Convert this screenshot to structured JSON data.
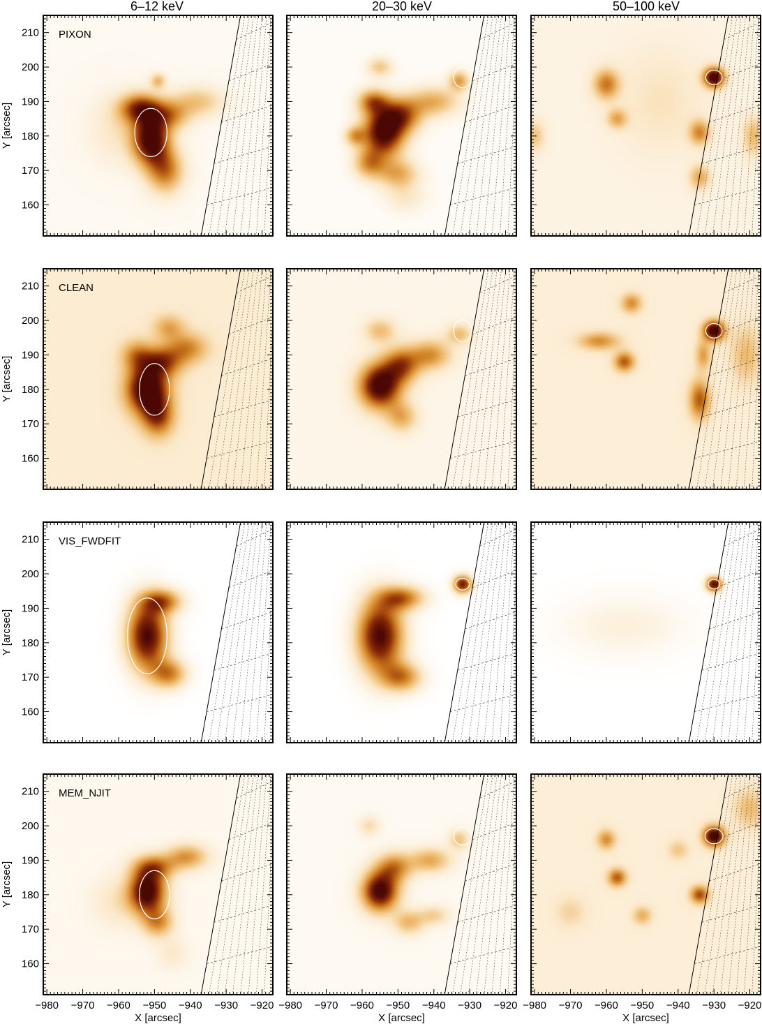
{
  "figure": {
    "column_titles": [
      "6–12 keV",
      "20–30 keV",
      "50–100 keV"
    ],
    "row_labels": [
      "PIXON",
      "CLEAN",
      "VIS_FWDFIT",
      "MEM_NJIT"
    ],
    "xlabel": "X [arcsec]",
    "ylabel": "Y [arcsec]"
  },
  "chart_data": {
    "type": "heatmap",
    "colormap": [
      "#ffffff",
      "#fbe7c6",
      "#eeb86a",
      "#cc7a1d",
      "#8a2a08",
      "#4a0703"
    ],
    "xlim": [
      -981,
      -917
    ],
    "ylim": [
      151,
      215
    ],
    "xticks": [
      -980,
      -970,
      -960,
      -950,
      -940,
      -930,
      -920
    ],
    "yticks": [
      160,
      170,
      180,
      190,
      200,
      210
    ],
    "grid": false,
    "limb_line": [
      [
        -937,
        151
      ],
      [
        -926,
        215
      ]
    ],
    "panels": [
      {
        "row": 0,
        "col": 0,
        "background": 0.05,
        "sources": [
          {
            "x": -951,
            "y": 179,
            "sx": 3.5,
            "sy": 5,
            "a": 1.0
          },
          {
            "x": -954,
            "y": 188,
            "sx": 4,
            "sy": 3,
            "a": 0.7
          },
          {
            "x": -946,
            "y": 186,
            "sx": 4,
            "sy": 3,
            "a": 0.45
          },
          {
            "x": -947,
            "y": 170,
            "sx": 3.5,
            "sy": 4.5,
            "a": 0.55
          },
          {
            "x": -938,
            "y": 190,
            "sx": 5,
            "sy": 3,
            "a": 0.3
          },
          {
            "x": -949,
            "y": 196,
            "sx": 1.5,
            "sy": 1.5,
            "a": 0.35
          },
          {
            "x": -960,
            "y": 182,
            "sx": 6,
            "sy": 7,
            "a": 0.15
          }
        ],
        "contours": [
          {
            "x": -951,
            "y": 181,
            "rx": 4.5,
            "ry": 7
          }
        ]
      },
      {
        "row": 0,
        "col": 1,
        "background": 0.03,
        "sources": [
          {
            "x": -954,
            "y": 181,
            "sx": 4,
            "sy": 5,
            "a": 1.0
          },
          {
            "x": -949,
            "y": 186,
            "sx": 4,
            "sy": 3.5,
            "a": 0.6
          },
          {
            "x": -957,
            "y": 190,
            "sx": 3,
            "sy": 2.5,
            "a": 0.55
          },
          {
            "x": -940,
            "y": 190,
            "sx": 5,
            "sy": 3,
            "a": 0.4
          },
          {
            "x": -933,
            "y": 196,
            "sx": 2,
            "sy": 2,
            "a": 0.45
          },
          {
            "x": -950,
            "y": 169,
            "sx": 4,
            "sy": 3,
            "a": 0.4
          },
          {
            "x": -958,
            "y": 172,
            "sx": 3,
            "sy": 3,
            "a": 0.45
          },
          {
            "x": -948,
            "y": 162,
            "sx": 4,
            "sy": 3,
            "a": 0.15
          },
          {
            "x": -962,
            "y": 180,
            "sx": 2,
            "sy": 2,
            "a": 0.4
          },
          {
            "x": -955,
            "y": 200,
            "sx": 2.5,
            "sy": 2,
            "a": 0.3
          }
        ],
        "contours": [
          {
            "x": -932,
            "y": 197,
            "rx": 2.5,
            "ry": 3
          }
        ]
      },
      {
        "row": 0,
        "col": 2,
        "background": 0.1,
        "sources": [
          {
            "x": -930,
            "y": 197,
            "sx": 2,
            "sy": 2,
            "a": 1.0
          },
          {
            "x": -960,
            "y": 195,
            "sx": 2.5,
            "sy": 3,
            "a": 0.5
          },
          {
            "x": -957,
            "y": 185,
            "sx": 2,
            "sy": 2,
            "a": 0.35
          },
          {
            "x": -934,
            "y": 181,
            "sx": 2,
            "sy": 2.5,
            "a": 0.45
          },
          {
            "x": -934,
            "y": 168,
            "sx": 2,
            "sy": 2.5,
            "a": 0.35
          },
          {
            "x": -919,
            "y": 180,
            "sx": 2,
            "sy": 4,
            "a": 0.3
          },
          {
            "x": -980,
            "y": 180,
            "sx": 2,
            "sy": 3,
            "a": 0.25
          },
          {
            "x": -945,
            "y": 190,
            "sx": 8,
            "sy": 10,
            "a": 0.12
          }
        ],
        "contours": [
          {
            "x": -930,
            "y": 197,
            "rx": 2.3,
            "ry": 2.1
          }
        ]
      },
      {
        "row": 1,
        "col": 0,
        "background": 0.16,
        "sources": [
          {
            "x": -952,
            "y": 180,
            "sx": 4,
            "sy": 5,
            "a": 1.0
          },
          {
            "x": -948,
            "y": 188,
            "sx": 4,
            "sy": 3,
            "a": 0.55
          },
          {
            "x": -941,
            "y": 192,
            "sx": 4,
            "sy": 3,
            "a": 0.4
          },
          {
            "x": -949,
            "y": 172,
            "sx": 3,
            "sy": 4,
            "a": 0.55
          },
          {
            "x": -946,
            "y": 198,
            "sx": 3,
            "sy": 2.5,
            "a": 0.3
          },
          {
            "x": -955,
            "y": 190,
            "sx": 3,
            "sy": 3,
            "a": 0.35
          }
        ],
        "contours": [
          {
            "x": -950,
            "y": 180,
            "rx": 4.2,
            "ry": 7.5
          }
        ]
      },
      {
        "row": 1,
        "col": 1,
        "background": 0.08,
        "sources": [
          {
            "x": -955,
            "y": 181,
            "sx": 4,
            "sy": 4.5,
            "a": 1.0
          },
          {
            "x": -949,
            "y": 187,
            "sx": 3.5,
            "sy": 3.5,
            "a": 0.6
          },
          {
            "x": -941,
            "y": 190,
            "sx": 4,
            "sy": 3,
            "a": 0.45
          },
          {
            "x": -933,
            "y": 196,
            "sx": 2.5,
            "sy": 2,
            "a": 0.3
          },
          {
            "x": -949,
            "y": 172,
            "sx": 3,
            "sy": 3,
            "a": 0.35
          },
          {
            "x": -955,
            "y": 197,
            "sx": 3,
            "sy": 2.5,
            "a": 0.3
          }
        ],
        "contours": [
          {
            "x": -932,
            "y": 197,
            "rx": 2.5,
            "ry": 3.2
          }
        ]
      },
      {
        "row": 1,
        "col": 2,
        "background": 0.14,
        "sources": [
          {
            "x": -930,
            "y": 197,
            "sx": 2,
            "sy": 2,
            "a": 1.0
          },
          {
            "x": -955,
            "y": 188,
            "sx": 2,
            "sy": 2,
            "a": 0.55
          },
          {
            "x": -962,
            "y": 194,
            "sx": 4,
            "sy": 1.8,
            "a": 0.4
          },
          {
            "x": -953,
            "y": 205,
            "sx": 2,
            "sy": 2,
            "a": 0.4
          },
          {
            "x": -934,
            "y": 177,
            "sx": 2,
            "sy": 4,
            "a": 0.55
          },
          {
            "x": -933,
            "y": 190,
            "sx": 1.5,
            "sy": 3,
            "a": 0.35
          },
          {
            "x": -921,
            "y": 190,
            "sx": 3,
            "sy": 6,
            "a": 0.25
          }
        ],
        "contours": [
          {
            "x": -930,
            "y": 197,
            "rx": 2.3,
            "ry": 2.1
          }
        ]
      },
      {
        "row": 2,
        "col": 0,
        "background": 0.0,
        "sources": [
          {
            "x": -952,
            "y": 182,
            "sx": 4,
            "sy": 7,
            "a": 1.0
          },
          {
            "x": -948,
            "y": 192,
            "sx": 4,
            "sy": 2.5,
            "a": 0.6
          },
          {
            "x": -946,
            "y": 171,
            "sx": 3.5,
            "sy": 3,
            "a": 0.55
          }
        ],
        "contours": [
          {
            "x": -952,
            "y": 182,
            "rx": 5.5,
            "ry": 11
          }
        ]
      },
      {
        "row": 2,
        "col": 1,
        "background": 0.0,
        "sources": [
          {
            "x": -955,
            "y": 182,
            "sx": 4.5,
            "sy": 7.5,
            "a": 1.0
          },
          {
            "x": -949,
            "y": 193,
            "sx": 4.5,
            "sy": 2.5,
            "a": 0.6
          },
          {
            "x": -949,
            "y": 170,
            "sx": 4,
            "sy": 3,
            "a": 0.55
          },
          {
            "x": -932,
            "y": 197,
            "sx": 1.8,
            "sy": 1.8,
            "a": 0.9
          }
        ],
        "contours": [
          {
            "x": -932,
            "y": 197,
            "rx": 1.9,
            "ry": 1.7
          }
        ]
      },
      {
        "row": 2,
        "col": 2,
        "background": 0.0,
        "sources": [
          {
            "x": -930,
            "y": 197,
            "sx": 1.5,
            "sy": 1.5,
            "a": 1.0
          },
          {
            "x": -955,
            "y": 185,
            "sx": 12,
            "sy": 6,
            "a": 0.12
          }
        ],
        "contours": [
          {
            "x": -930,
            "y": 197,
            "rx": 1.6,
            "ry": 1.4
          }
        ]
      },
      {
        "row": 3,
        "col": 0,
        "background": 0.06,
        "sources": [
          {
            "x": -952,
            "y": 181,
            "sx": 3.5,
            "sy": 4.5,
            "a": 1.0
          },
          {
            "x": -950,
            "y": 188,
            "sx": 4,
            "sy": 2.5,
            "a": 0.5
          },
          {
            "x": -941,
            "y": 191,
            "sx": 4,
            "sy": 2.5,
            "a": 0.45
          },
          {
            "x": -949,
            "y": 172,
            "sx": 3,
            "sy": 3,
            "a": 0.45
          },
          {
            "x": -960,
            "y": 178,
            "sx": 5,
            "sy": 5,
            "a": 0.15
          },
          {
            "x": -945,
            "y": 163,
            "sx": 3,
            "sy": 3,
            "a": 0.12
          }
        ],
        "contours": [
          {
            "x": -950,
            "y": 180,
            "rx": 4.2,
            "ry": 7
          }
        ]
      },
      {
        "row": 3,
        "col": 1,
        "background": 0.05,
        "sources": [
          {
            "x": -955,
            "y": 181,
            "sx": 3.5,
            "sy": 4,
            "a": 1.0
          },
          {
            "x": -951,
            "y": 188,
            "sx": 3.5,
            "sy": 3,
            "a": 0.5
          },
          {
            "x": -941,
            "y": 190,
            "sx": 4,
            "sy": 2.5,
            "a": 0.4
          },
          {
            "x": -933,
            "y": 196,
            "sx": 2,
            "sy": 2,
            "a": 0.3
          },
          {
            "x": -947,
            "y": 172,
            "sx": 3,
            "sy": 2.5,
            "a": 0.35
          },
          {
            "x": -940,
            "y": 174,
            "sx": 3,
            "sy": 2,
            "a": 0.25
          },
          {
            "x": -958,
            "y": 200,
            "sx": 2,
            "sy": 2,
            "a": 0.2
          }
        ],
        "contours": [
          {
            "x": -932,
            "y": 197,
            "rx": 2.5,
            "ry": 2.6
          }
        ]
      },
      {
        "row": 3,
        "col": 2,
        "background": 0.14,
        "sources": [
          {
            "x": -930,
            "y": 197,
            "sx": 2,
            "sy": 2,
            "a": 1.0
          },
          {
            "x": -957,
            "y": 185,
            "sx": 1.8,
            "sy": 1.8,
            "a": 0.55
          },
          {
            "x": -960,
            "y": 196,
            "sx": 1.8,
            "sy": 2,
            "a": 0.4
          },
          {
            "x": -934,
            "y": 180,
            "sx": 1.8,
            "sy": 1.8,
            "a": 0.6
          },
          {
            "x": -950,
            "y": 174,
            "sx": 1.8,
            "sy": 1.8,
            "a": 0.3
          },
          {
            "x": -940,
            "y": 193,
            "sx": 2,
            "sy": 2,
            "a": 0.2
          },
          {
            "x": -920,
            "y": 205,
            "sx": 3,
            "sy": 4,
            "a": 0.25
          },
          {
            "x": -970,
            "y": 175,
            "sx": 3,
            "sy": 3,
            "a": 0.15
          }
        ],
        "contours": [
          {
            "x": -930,
            "y": 197,
            "rx": 2.5,
            "ry": 2.2
          }
        ]
      }
    ]
  }
}
